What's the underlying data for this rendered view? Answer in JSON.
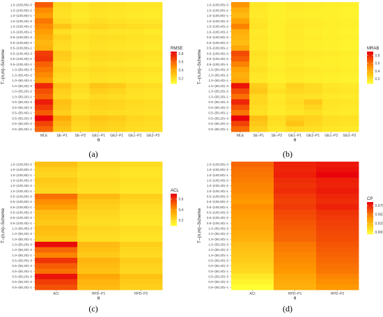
{
  "rows": [
    "1.0–(100,80)–3",
    "1.0–(100,80)–2",
    "1.0–(100,80)–1",
    "1.0–(100,40)–3",
    "1.0–(100,40)–2",
    "1.0–(100,40)–1",
    "0.5–(100,80)–3",
    "0.5–(100,80)–2",
    "0.5–(100,80)–1",
    "0.5–(100,40)–3",
    "0.5–(100,40)–2",
    "0.5–(100,40)–1",
    "1.0–(50,40)–3",
    "1.0–(50,40)–2",
    "1.0–(50,40)–1",
    "1.0–(50,20)–3",
    "1.0–(50,20)–2",
    "1.0–(50,20)–1",
    "0.5–(50,40)–3",
    "0.5–(50,40)–2",
    "0.5–(50,40)–1",
    "0.5–(50,20)–3",
    "0.5–(50,20)–2",
    "0.5–(50,20)–1"
  ],
  "ylabel": "T–(n,m)–Scheme",
  "xlabel": "θ",
  "colors": {
    "low": "#ffff33",
    "mid": "#ff9900",
    "high": "#e8000b"
  },
  "chart_data": [
    {
      "type": "heatmap",
      "caption": "(a)",
      "legend_title": "RMSE",
      "ticks": [
        0.2,
        0.4,
        0.6,
        0.8
      ],
      "range": [
        0.08,
        0.85
      ],
      "columns": [
        "MLE",
        "SE−P1",
        "SE−P2",
        "GE1−P1",
        "GE2−P1",
        "GE1−P2",
        "GE2−P2"
      ],
      "values": [
        [
          0.62,
          0.22,
          0.18,
          0.2,
          0.19,
          0.18,
          0.17
        ],
        [
          0.5,
          0.2,
          0.17,
          0.19,
          0.18,
          0.17,
          0.16
        ],
        [
          0.45,
          0.19,
          0.16,
          0.18,
          0.17,
          0.16,
          0.15
        ],
        [
          0.55,
          0.22,
          0.18,
          0.21,
          0.19,
          0.18,
          0.17
        ],
        [
          0.5,
          0.3,
          0.22,
          0.24,
          0.22,
          0.21,
          0.2
        ],
        [
          0.45,
          0.2,
          0.17,
          0.19,
          0.18,
          0.17,
          0.16
        ],
        [
          0.4,
          0.25,
          0.19,
          0.21,
          0.2,
          0.19,
          0.18
        ],
        [
          0.35,
          0.22,
          0.18,
          0.2,
          0.19,
          0.18,
          0.17
        ],
        [
          0.38,
          0.21,
          0.17,
          0.19,
          0.18,
          0.17,
          0.16
        ],
        [
          0.7,
          0.28,
          0.2,
          0.22,
          0.21,
          0.2,
          0.19
        ],
        [
          0.72,
          0.26,
          0.19,
          0.21,
          0.2,
          0.19,
          0.18
        ],
        [
          0.6,
          0.22,
          0.17,
          0.19,
          0.18,
          0.17,
          0.16
        ],
        [
          0.55,
          0.25,
          0.2,
          0.22,
          0.21,
          0.2,
          0.19
        ],
        [
          0.5,
          0.22,
          0.18,
          0.2,
          0.19,
          0.18,
          0.17
        ],
        [
          0.45,
          0.2,
          0.17,
          0.19,
          0.18,
          0.17,
          0.16
        ],
        [
          0.75,
          0.3,
          0.22,
          0.3,
          0.28,
          0.22,
          0.21
        ],
        [
          0.65,
          0.26,
          0.2,
          0.26,
          0.24,
          0.2,
          0.19
        ],
        [
          0.6,
          0.24,
          0.18,
          0.22,
          0.21,
          0.19,
          0.18
        ],
        [
          0.78,
          0.32,
          0.23,
          0.25,
          0.24,
          0.22,
          0.21
        ],
        [
          0.7,
          0.3,
          0.22,
          0.24,
          0.23,
          0.21,
          0.2
        ],
        [
          0.62,
          0.26,
          0.2,
          0.22,
          0.21,
          0.2,
          0.19
        ],
        [
          0.85,
          0.4,
          0.26,
          0.3,
          0.28,
          0.24,
          0.22
        ],
        [
          0.68,
          0.34,
          0.24,
          0.27,
          0.25,
          0.22,
          0.21
        ],
        [
          0.6,
          0.3,
          0.22,
          0.25,
          0.23,
          0.21,
          0.2
        ]
      ]
    },
    {
      "type": "heatmap",
      "caption": "(b)",
      "legend_title": "MRAB",
      "ticks": [
        0.2,
        0.4,
        0.6,
        0.8
      ],
      "range": [
        0.08,
        0.9
      ],
      "columns": [
        "MLE",
        "SE−P1",
        "SE−P2",
        "GE1−P1",
        "GE2−P1",
        "GE1−P2",
        "GE2−P2"
      ],
      "values": [
        [
          0.5,
          0.18,
          0.15,
          0.17,
          0.16,
          0.15,
          0.14
        ],
        [
          0.4,
          0.17,
          0.14,
          0.16,
          0.15,
          0.14,
          0.13
        ],
        [
          0.36,
          0.16,
          0.14,
          0.15,
          0.14,
          0.14,
          0.13
        ],
        [
          0.45,
          0.18,
          0.15,
          0.17,
          0.16,
          0.15,
          0.14
        ],
        [
          0.55,
          0.19,
          0.15,
          0.17,
          0.16,
          0.15,
          0.14
        ],
        [
          0.4,
          0.17,
          0.14,
          0.16,
          0.15,
          0.14,
          0.13
        ],
        [
          0.38,
          0.18,
          0.15,
          0.17,
          0.16,
          0.15,
          0.14
        ],
        [
          0.35,
          0.17,
          0.14,
          0.16,
          0.15,
          0.14,
          0.13
        ],
        [
          0.42,
          0.17,
          0.14,
          0.16,
          0.15,
          0.14,
          0.13
        ],
        [
          0.7,
          0.2,
          0.16,
          0.18,
          0.17,
          0.16,
          0.15
        ],
        [
          0.65,
          0.19,
          0.15,
          0.17,
          0.16,
          0.15,
          0.14
        ],
        [
          0.55,
          0.18,
          0.15,
          0.16,
          0.15,
          0.15,
          0.14
        ],
        [
          0.45,
          0.2,
          0.16,
          0.18,
          0.17,
          0.16,
          0.15
        ],
        [
          0.4,
          0.18,
          0.15,
          0.17,
          0.16,
          0.15,
          0.14
        ],
        [
          0.42,
          0.17,
          0.14,
          0.16,
          0.15,
          0.14,
          0.13
        ],
        [
          0.85,
          0.28,
          0.18,
          0.26,
          0.22,
          0.18,
          0.17
        ],
        [
          0.7,
          0.3,
          0.2,
          0.24,
          0.22,
          0.19,
          0.18
        ],
        [
          0.6,
          0.24,
          0.17,
          0.2,
          0.19,
          0.17,
          0.16
        ],
        [
          0.8,
          0.24,
          0.18,
          0.22,
          0.3,
          0.19,
          0.18
        ],
        [
          0.68,
          0.22,
          0.17,
          0.2,
          0.25,
          0.18,
          0.17
        ],
        [
          0.58,
          0.2,
          0.16,
          0.18,
          0.2,
          0.17,
          0.16
        ],
        [
          0.9,
          0.34,
          0.22,
          0.28,
          0.26,
          0.21,
          0.2
        ],
        [
          0.72,
          0.3,
          0.2,
          0.32,
          0.24,
          0.2,
          0.19
        ],
        [
          0.62,
          0.26,
          0.18,
          0.22,
          0.21,
          0.18,
          0.17
        ]
      ]
    },
    {
      "type": "heatmap",
      "caption": "(c)",
      "legend_title": "ACL",
      "ticks": [
        0.2,
        0.4,
        0.6
      ],
      "range": [
        0.1,
        0.7
      ],
      "columns": [
        "ACI",
        "HPD−P1",
        "HPD−P2"
      ],
      "values": [
        [
          0.28,
          0.22,
          0.2
        ],
        [
          0.24,
          0.2,
          0.18
        ],
        [
          0.22,
          0.19,
          0.17
        ],
        [
          0.26,
          0.21,
          0.19
        ],
        [
          0.24,
          0.2,
          0.18
        ],
        [
          0.22,
          0.19,
          0.17
        ],
        [
          0.48,
          0.3,
          0.24
        ],
        [
          0.42,
          0.26,
          0.22
        ],
        [
          0.38,
          0.24,
          0.2
        ],
        [
          0.3,
          0.22,
          0.19
        ],
        [
          0.28,
          0.21,
          0.18
        ],
        [
          0.26,
          0.2,
          0.17
        ],
        [
          0.3,
          0.22,
          0.2
        ],
        [
          0.28,
          0.21,
          0.19
        ],
        [
          0.26,
          0.2,
          0.18
        ],
        [
          0.68,
          0.3,
          0.24
        ],
        [
          0.5,
          0.28,
          0.22
        ],
        [
          0.44,
          0.26,
          0.21
        ],
        [
          0.6,
          0.32,
          0.25
        ],
        [
          0.52,
          0.3,
          0.23
        ],
        [
          0.48,
          0.28,
          0.22
        ],
        [
          0.66,
          0.36,
          0.28
        ],
        [
          0.58,
          0.32,
          0.26
        ],
        [
          0.54,
          0.3,
          0.24
        ]
      ]
    },
    {
      "type": "heatmap",
      "caption": "(d)",
      "legend_title": "CP",
      "ticks": [
        0.9,
        0.925,
        0.95,
        0.975
      ],
      "tick_labels": [
        "0.900",
        "0.925",
        "0.950",
        "0.975"
      ],
      "range": [
        0.895,
        0.985
      ],
      "columns": [
        "ACI",
        "HPD−P1",
        "HPD−P2"
      ],
      "values": [
        [
          0.955,
          0.975,
          0.978
        ],
        [
          0.952,
          0.974,
          0.98
        ],
        [
          0.95,
          0.976,
          0.984
        ],
        [
          0.948,
          0.972,
          0.976
        ],
        [
          0.946,
          0.97,
          0.975
        ],
        [
          0.945,
          0.972,
          0.977
        ],
        [
          0.942,
          0.968,
          0.974
        ],
        [
          0.94,
          0.966,
          0.972
        ],
        [
          0.943,
          0.968,
          0.975
        ],
        [
          0.94,
          0.964,
          0.97
        ],
        [
          0.938,
          0.962,
          0.968
        ],
        [
          0.936,
          0.96,
          0.966
        ],
        [
          0.935,
          0.958,
          0.965
        ],
        [
          0.932,
          0.956,
          0.963
        ],
        [
          0.93,
          0.955,
          0.962
        ],
        [
          0.925,
          0.95,
          0.96
        ],
        [
          0.922,
          0.948,
          0.958
        ],
        [
          0.92,
          0.946,
          0.956
        ],
        [
          0.918,
          0.944,
          0.954
        ],
        [
          0.915,
          0.942,
          0.952
        ],
        [
          0.912,
          0.94,
          0.95
        ],
        [
          0.905,
          0.935,
          0.946
        ],
        [
          0.9,
          0.932,
          0.943
        ],
        [
          0.895,
          0.93,
          0.94
        ]
      ]
    }
  ]
}
